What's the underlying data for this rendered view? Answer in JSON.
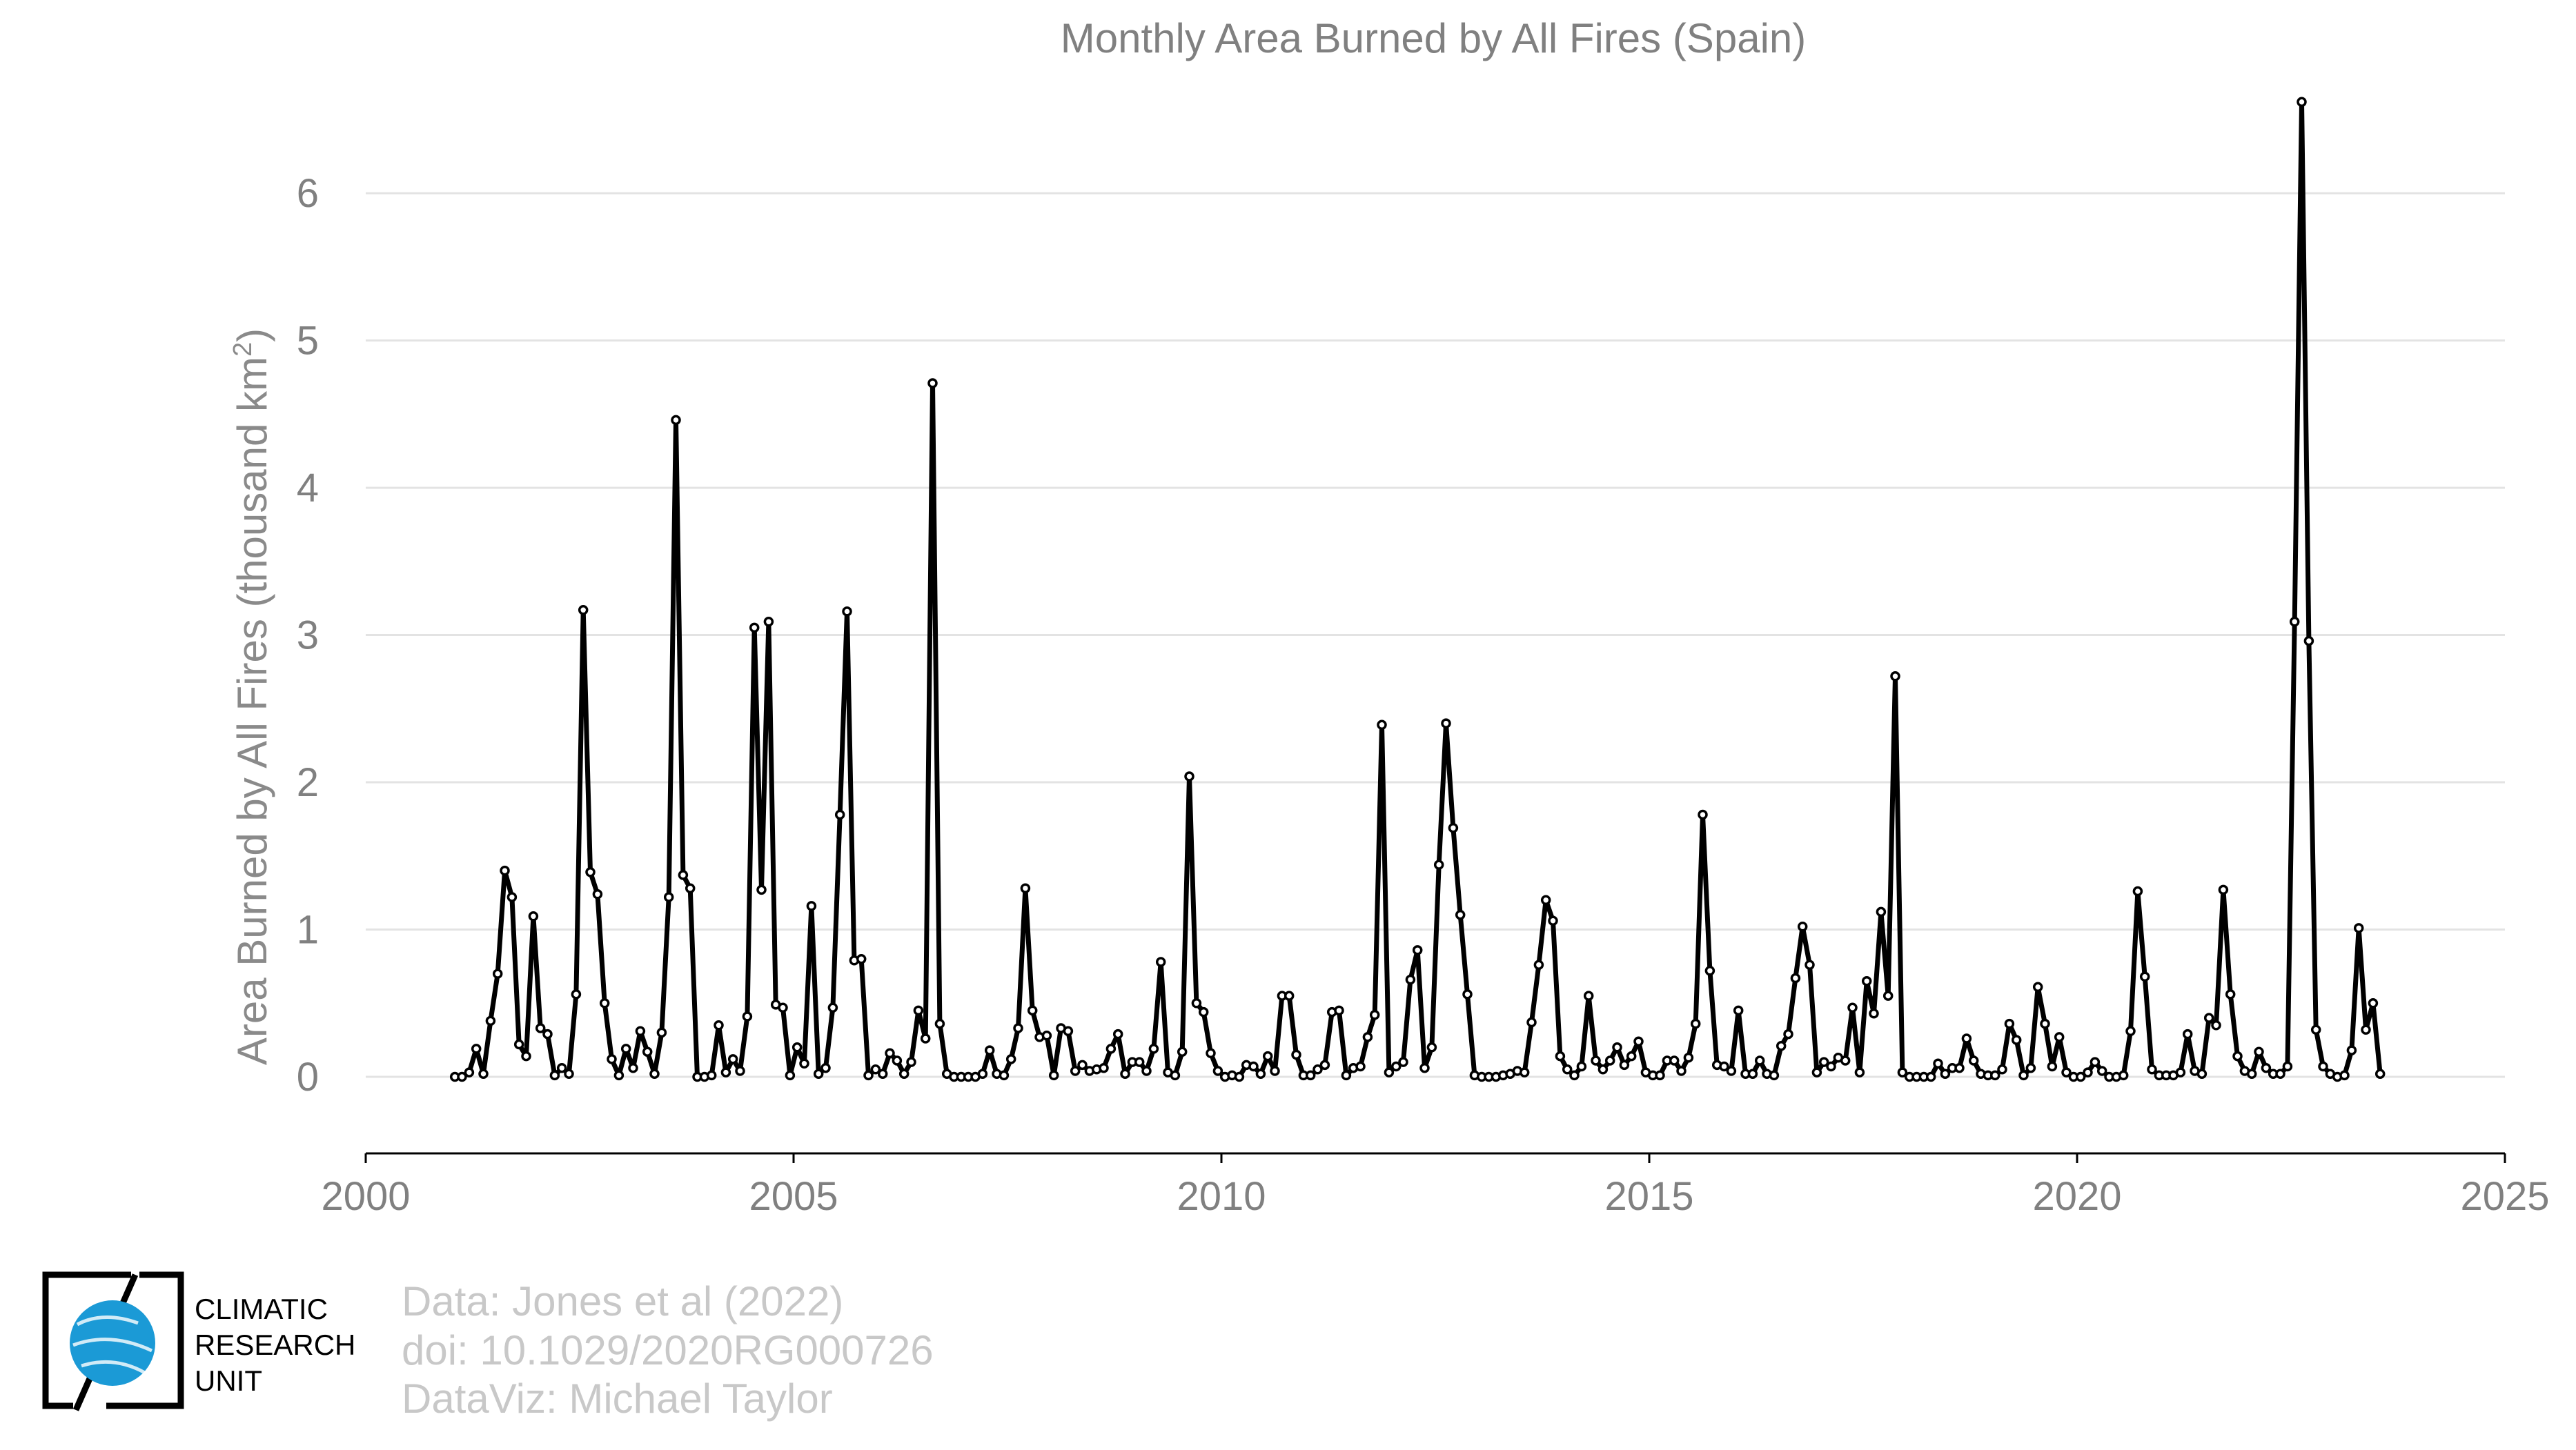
{
  "chart_data": {
    "type": "line",
    "title": "Monthly Area Burned by All Fires (Spain)",
    "ylabel": "Area Burned by All Fires (thousand km",
    "ylabel_sup": "2",
    "ylabel_end": ")",
    "xlabel": "",
    "xlim": [
      2000,
      2025
    ],
    "ylim": [
      -0.52,
      6.75
    ],
    "x_ticks": [
      2000,
      2005,
      2010,
      2015,
      2020,
      2025
    ],
    "y_ticks": [
      0,
      1,
      2,
      3,
      4,
      5,
      6
    ],
    "grid": "horizontal",
    "line_color": "#000000",
    "marker": "hollow-circle",
    "x_start": 2001.042,
    "x_step_months": 1,
    "values": [
      0.0,
      0.0,
      0.03,
      0.19,
      0.02,
      0.38,
      0.7,
      1.4,
      1.22,
      0.22,
      0.14,
      1.09,
      0.33,
      0.29,
      0.01,
      0.06,
      0.02,
      0.56,
      3.17,
      1.39,
      1.24,
      0.5,
      0.12,
      0.01,
      0.19,
      0.06,
      0.31,
      0.17,
      0.02,
      0.3,
      1.22,
      4.46,
      1.37,
      1.28,
      0.0,
      0.0,
      0.01,
      0.35,
      0.03,
      0.12,
      0.04,
      0.41,
      3.05,
      1.27,
      3.09,
      0.49,
      0.47,
      0.01,
      0.2,
      0.09,
      1.16,
      0.02,
      0.06,
      0.47,
      1.78,
      3.16,
      0.79,
      0.8,
      0.01,
      0.05,
      0.02,
      0.16,
      0.11,
      0.02,
      0.1,
      0.45,
      0.26,
      4.71,
      0.36,
      0.02,
      0.0,
      0.0,
      0.0,
      0.0,
      0.02,
      0.18,
      0.02,
      0.01,
      0.12,
      0.33,
      1.28,
      0.45,
      0.27,
      0.28,
      0.01,
      0.33,
      0.31,
      0.04,
      0.08,
      0.04,
      0.05,
      0.06,
      0.19,
      0.29,
      0.02,
      0.1,
      0.1,
      0.04,
      0.19,
      0.78,
      0.03,
      0.01,
      0.17,
      2.04,
      0.5,
      0.44,
      0.16,
      0.04,
      0.0,
      0.01,
      0.0,
      0.08,
      0.07,
      0.02,
      0.14,
      0.04,
      0.55,
      0.55,
      0.15,
      0.01,
      0.01,
      0.05,
      0.08,
      0.44,
      0.45,
      0.01,
      0.06,
      0.07,
      0.27,
      0.42,
      2.39,
      0.03,
      0.07,
      0.1,
      0.66,
      0.86,
      0.06,
      0.2,
      1.44,
      2.4,
      1.69,
      1.1,
      0.56,
      0.01,
      0.0,
      0.0,
      0.0,
      0.01,
      0.02,
      0.04,
      0.03,
      0.37,
      0.76,
      1.2,
      1.06,
      0.14,
      0.05,
      0.01,
      0.07,
      0.55,
      0.11,
      0.05,
      0.11,
      0.2,
      0.08,
      0.14,
      0.24,
      0.03,
      0.01,
      0.01,
      0.11,
      0.11,
      0.04,
      0.13,
      0.36,
      1.78,
      0.72,
      0.08,
      0.07,
      0.04,
      0.45,
      0.02,
      0.02,
      0.11,
      0.02,
      0.01,
      0.21,
      0.29,
      0.67,
      1.02,
      0.76,
      0.03,
      0.1,
      0.07,
      0.13,
      0.11,
      0.47,
      0.03,
      0.65,
      0.43,
      1.12,
      0.55,
      2.72,
      0.03,
      0.0,
      0.0,
      0.0,
      0.0,
      0.09,
      0.02,
      0.06,
      0.06,
      0.26,
      0.11,
      0.02,
      0.01,
      0.01,
      0.05,
      0.36,
      0.25,
      0.01,
      0.06,
      0.61,
      0.36,
      0.07,
      0.27,
      0.03,
      0.0,
      0.0,
      0.03,
      0.1,
      0.04,
      0.0,
      0.0,
      0.01,
      0.31,
      1.26,
      0.68,
      0.05,
      0.01,
      0.01,
      0.01,
      0.03,
      0.29,
      0.04,
      0.02,
      0.4,
      0.35,
      1.27,
      0.56,
      0.14,
      0.04,
      0.02,
      0.17,
      0.06,
      0.02,
      0.02,
      0.07,
      3.09,
      6.62,
      2.96,
      0.32,
      0.07,
      0.02,
      0.0,
      0.01,
      0.18,
      1.01,
      0.32,
      0.5,
      0.02
    ]
  },
  "credits": {
    "data": "Data: Jones et al (2022)",
    "doi": "doi: 10.1029/2020RG000726",
    "viz": "DataViz: Michael Taylor"
  },
  "logo": {
    "line1": "CLIMATIC",
    "line2": "RESEARCH",
    "line3": "UNIT",
    "globe_color": "#1b9ad6"
  }
}
